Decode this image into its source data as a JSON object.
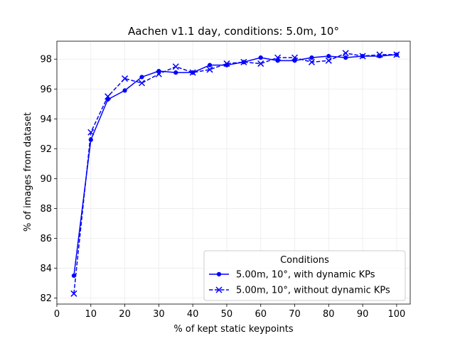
{
  "chart_data": {
    "type": "line",
    "title": "Aachen v1.1 day, conditions: 5.0m, 10°",
    "xlabel": "% of kept static keypoints",
    "ylabel": "% of images from dataset",
    "xlim": [
      0,
      104
    ],
    "ylim": [
      81.6,
      99.2
    ],
    "xticks": [
      0,
      10,
      20,
      30,
      40,
      50,
      60,
      70,
      80,
      90,
      100
    ],
    "yticks": [
      82,
      84,
      86,
      88,
      90,
      92,
      94,
      96,
      98
    ],
    "grid": true,
    "legend": {
      "title": "Conditions",
      "placement": "lower-right"
    },
    "colors": {
      "series": "#0000ff"
    },
    "x": [
      5,
      10,
      15,
      20,
      25,
      30,
      35,
      40,
      45,
      50,
      55,
      60,
      65,
      70,
      75,
      80,
      85,
      90,
      95,
      100
    ],
    "series": [
      {
        "name": "5.00m, 10°, with dynamic KPs",
        "style": "solid",
        "marker": "dot",
        "values": [
          83.5,
          92.6,
          95.3,
          95.9,
          96.8,
          97.2,
          97.1,
          97.1,
          97.6,
          97.6,
          97.8,
          98.1,
          97.9,
          97.9,
          98.1,
          98.2,
          98.1,
          98.2,
          98.2,
          98.3
        ]
      },
      {
        "name": "5.00m, 10°, without dynamic KPs",
        "style": "dashed",
        "marker": "x",
        "values": [
          82.3,
          93.1,
          95.5,
          96.7,
          96.4,
          97.0,
          97.5,
          97.1,
          97.3,
          97.7,
          97.8,
          97.7,
          98.1,
          98.1,
          97.8,
          97.9,
          98.4,
          98.2,
          98.3,
          98.3
        ]
      }
    ]
  }
}
